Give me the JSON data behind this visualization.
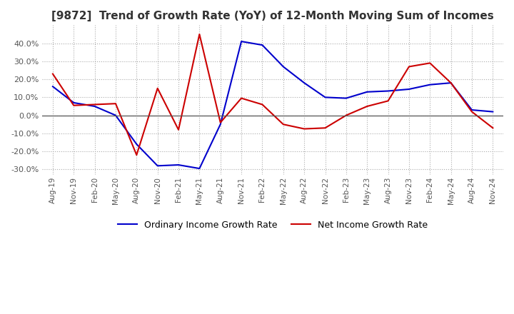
{
  "title": "[9872]  Trend of Growth Rate (YoY) of 12-Month Moving Sum of Incomes",
  "title_fontsize": 11,
  "ylim": [
    -33,
    50
  ],
  "yticks": [
    -30,
    -20,
    -10,
    0,
    10,
    20,
    30,
    40
  ],
  "background_color": "#ffffff",
  "grid_color": "#aaaaaa",
  "ordinary_color": "#0000cc",
  "net_color": "#cc0000",
  "legend_labels": [
    "Ordinary Income Growth Rate",
    "Net Income Growth Rate"
  ],
  "x_labels": [
    "Aug-19",
    "Nov-19",
    "Feb-20",
    "May-20",
    "Aug-20",
    "Nov-20",
    "Feb-21",
    "May-21",
    "Aug-21",
    "Nov-21",
    "Feb-22",
    "May-22",
    "Aug-22",
    "Nov-22",
    "Feb-23",
    "May-23",
    "Aug-23",
    "Nov-23",
    "Feb-24",
    "May-24",
    "Aug-24",
    "Nov-24"
  ],
  "ordinary_income": [
    16.0,
    7.0,
    5.0,
    0.0,
    -16.0,
    -28.0,
    -27.5,
    -29.5,
    -5.0,
    41.0,
    39.0,
    27.0,
    18.0,
    10.0,
    9.5,
    13.0,
    13.5,
    14.5,
    17.0,
    18.0,
    3.0,
    2.0
  ],
  "net_income": [
    23.0,
    5.5,
    6.0,
    6.5,
    -22.0,
    15.0,
    -8.0,
    45.0,
    -4.0,
    9.5,
    6.0,
    -5.0,
    -7.5,
    -7.0,
    0.0,
    5.0,
    8.0,
    27.0,
    29.0,
    18.0,
    2.0,
    -7.0
  ]
}
